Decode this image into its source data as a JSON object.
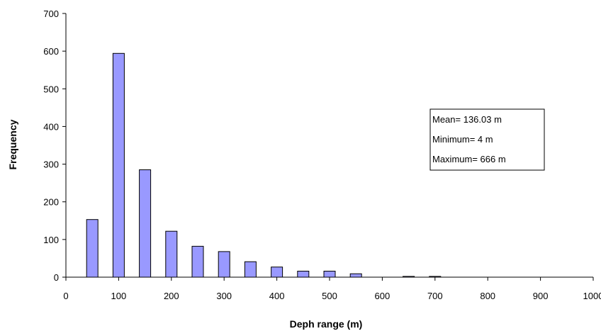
{
  "chart_data": {
    "type": "bar",
    "title": "",
    "xlabel": "Deph range (m)",
    "ylabel": "Frequency",
    "xlim": [
      0,
      1000
    ],
    "ylim": [
      0,
      700
    ],
    "x_ticks": [
      "0",
      "100",
      "200",
      "300",
      "400",
      "500",
      "600",
      "700",
      "800",
      "900",
      "1000"
    ],
    "y_ticks": [
      "0",
      "100",
      "200",
      "300",
      "400",
      "500",
      "600",
      "700"
    ],
    "x_tick_values": [
      0,
      100,
      200,
      300,
      400,
      500,
      600,
      700,
      800,
      900,
      1000
    ],
    "y_tick_values": [
      0,
      100,
      200,
      300,
      400,
      500,
      600,
      700
    ],
    "bars": [
      {
        "x": 50,
        "value": 153
      },
      {
        "x": 100,
        "value": 594
      },
      {
        "x": 150,
        "value": 285
      },
      {
        "x": 200,
        "value": 122
      },
      {
        "x": 250,
        "value": 82
      },
      {
        "x": 300,
        "value": 68
      },
      {
        "x": 350,
        "value": 41
      },
      {
        "x": 400,
        "value": 27
      },
      {
        "x": 450,
        "value": 16
      },
      {
        "x": 500,
        "value": 16
      },
      {
        "x": 550,
        "value": 9
      },
      {
        "x": 650,
        "value": 2
      },
      {
        "x": 700,
        "value": 2
      }
    ],
    "bar_color": "#9999ff",
    "bar_edge_color": "#000000",
    "grid": false,
    "annotation": {
      "lines": [
        "Mean= 136.03 m",
        "Minimum= 4 m",
        "Maximum= 666 m"
      ]
    }
  }
}
